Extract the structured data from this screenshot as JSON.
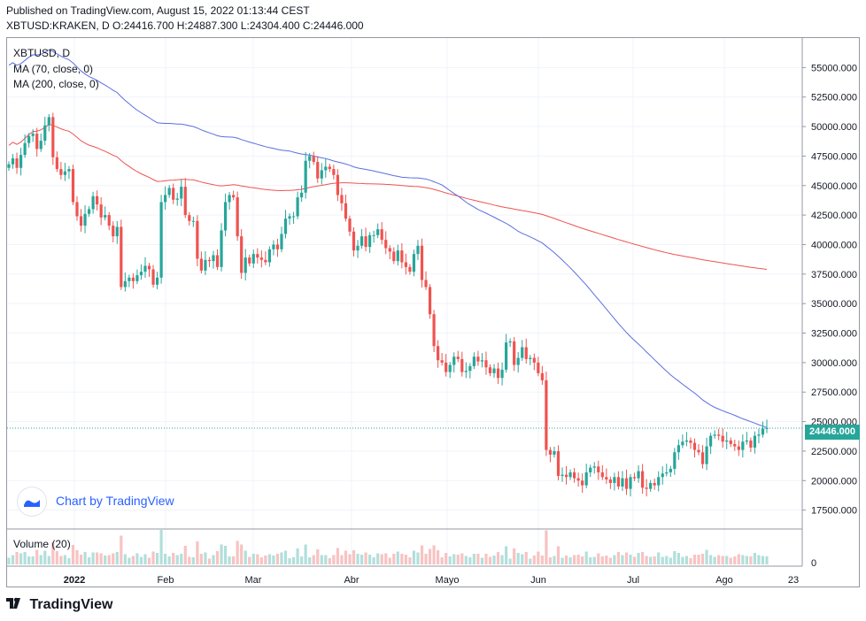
{
  "header": {
    "published": "Published on TradingView.com, August 15, 2022 01:13:44 CEST",
    "ohlc": "XBTUSD:KRAKEN, D O:24416.700 H:24887.300 L:24304.400 C:24446.000"
  },
  "legend": {
    "symbol": "XBTUSD, D",
    "ma70": "MA (70, close, 0)",
    "ma200": "MA (200, close, 0)",
    "volume": "Volume (20)"
  },
  "watermark": {
    "label": "Chart by TradingView"
  },
  "footer": {
    "brand": "TradingView"
  },
  "colors": {
    "up": "#26a69a",
    "down": "#ef5350",
    "ma70": "#5b6ee1",
    "ma200": "#ef5350",
    "grid": "#f0f3fa"
  },
  "chart_data": {
    "type": "candlestick",
    "title": "XBTUSD, D",
    "ylim": [
      15900,
      57500
    ],
    "y_ticks": [
      "55000.000",
      "52500.000",
      "50000.000",
      "47500.000",
      "45000.000",
      "42500.000",
      "40000.000",
      "37500.000",
      "35000.000",
      "32500.000",
      "30000.000",
      "27500.000",
      "25000.000",
      "22500.000",
      "20000.000",
      "17500.000"
    ],
    "x_ticks": [
      "2022",
      "Feb",
      "Mar",
      "Abr",
      "Mayo",
      "Jun",
      "Jul",
      "Ago",
      "23"
    ],
    "last_price": "24446.000",
    "volume_axis_label": "0",
    "closes": [
      46800,
      47300,
      46500,
      47600,
      48600,
      49200,
      49400,
      48100,
      48800,
      50100,
      50800,
      47400,
      46400,
      45900,
      46200,
      46400,
      43600,
      42400,
      41600,
      42600,
      43000,
      44100,
      43400,
      42300,
      42500,
      41600,
      40700,
      41500,
      36400,
      36900,
      37200,
      36900,
      37400,
      37700,
      38200,
      37900,
      36600,
      37200,
      43600,
      44200,
      44800,
      43800,
      43900,
      44900,
      42500,
      42000,
      42000,
      38800,
      37800,
      38700,
      38600,
      39100,
      38100,
      41200,
      43600,
      44200,
      44000,
      40700,
      37600,
      38900,
      38400,
      39200,
      38900,
      38700,
      38500,
      39600,
      40000,
      39600,
      40900,
      42200,
      42400,
      42400,
      44000,
      44400,
      47100,
      47500,
      47000,
      45600,
      46300,
      46600,
      46400,
      45900,
      44200,
      43500,
      42200,
      41100,
      39500,
      39900,
      40700,
      39800,
      40800,
      40800,
      41300,
      40400,
      39700,
      39400,
      38600,
      39500,
      38500,
      38100,
      37700,
      39200,
      39900,
      37000,
      36400,
      34100,
      31400,
      30200,
      30000,
      29200,
      29800,
      30500,
      30300,
      29200,
      29300,
      29700,
      30500,
      30100,
      30200,
      29600,
      29100,
      29500,
      28700,
      29400,
      31700,
      31800,
      29800,
      30400,
      31300,
      30300,
      30400,
      30000,
      29100,
      28500,
      22600,
      22200,
      22500,
      20400,
      20500,
      20300,
      20700,
      20200,
      20000,
      19600,
      20700,
      21100,
      21200,
      20700,
      20300,
      20100,
      19800,
      20300,
      19500,
      20200,
      19300,
      20300,
      20200,
      20800,
      19400,
      19300,
      19800,
      19600,
      20300,
      20600,
      20700,
      21000,
      22400,
      23000,
      23300,
      23400,
      23200,
      22600,
      22400,
      21400,
      22900,
      23800,
      23900,
      23800,
      23300,
      23400,
      23100,
      22900,
      22600,
      23300,
      23400,
      22800,
      23800,
      23900,
      24400,
      24450
    ],
    "ma70_start": 55200,
    "ma70_end": 24500,
    "ma200_start": 48400,
    "ma200_end": 37900,
    "series": [
      {
        "name": "MA (70, close, 0)"
      },
      {
        "name": "MA (200, close, 0)"
      }
    ]
  }
}
